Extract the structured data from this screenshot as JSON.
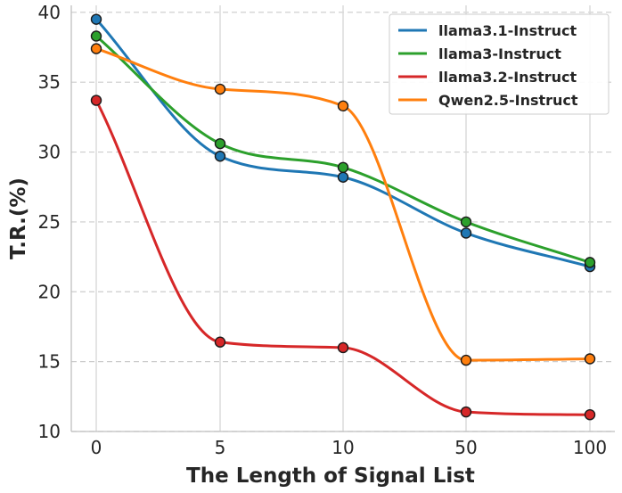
{
  "chart_data": {
    "type": "line",
    "title": "",
    "xlabel": "The Length of Signal List",
    "ylabel": "T.R.(%)",
    "categories": [
      "0",
      "5",
      "10",
      "50",
      "100"
    ],
    "ylim": [
      10,
      40.5
    ],
    "yticks": [
      10,
      15,
      20,
      25,
      30,
      35,
      40
    ],
    "grid": {
      "horizontal": "dashed",
      "vertical": "solid"
    },
    "legend_position": "top-right",
    "series": [
      {
        "name": "llama3.1-Instruct",
        "color": "#1f77b4",
        "values": [
          39.5,
          29.7,
          28.2,
          24.2,
          21.8
        ]
      },
      {
        "name": "llama3-Instruct",
        "color": "#2ca02c",
        "values": [
          38.3,
          30.6,
          28.9,
          25.0,
          22.1
        ]
      },
      {
        "name": "llama3.2-Instruct",
        "color": "#d62728",
        "values": [
          33.7,
          16.4,
          16.0,
          11.4,
          11.2
        ]
      },
      {
        "name": "Qwen2.5-Instruct",
        "color": "#ff7f0e",
        "values": [
          37.4,
          34.5,
          33.3,
          15.1,
          15.2
        ]
      }
    ]
  }
}
